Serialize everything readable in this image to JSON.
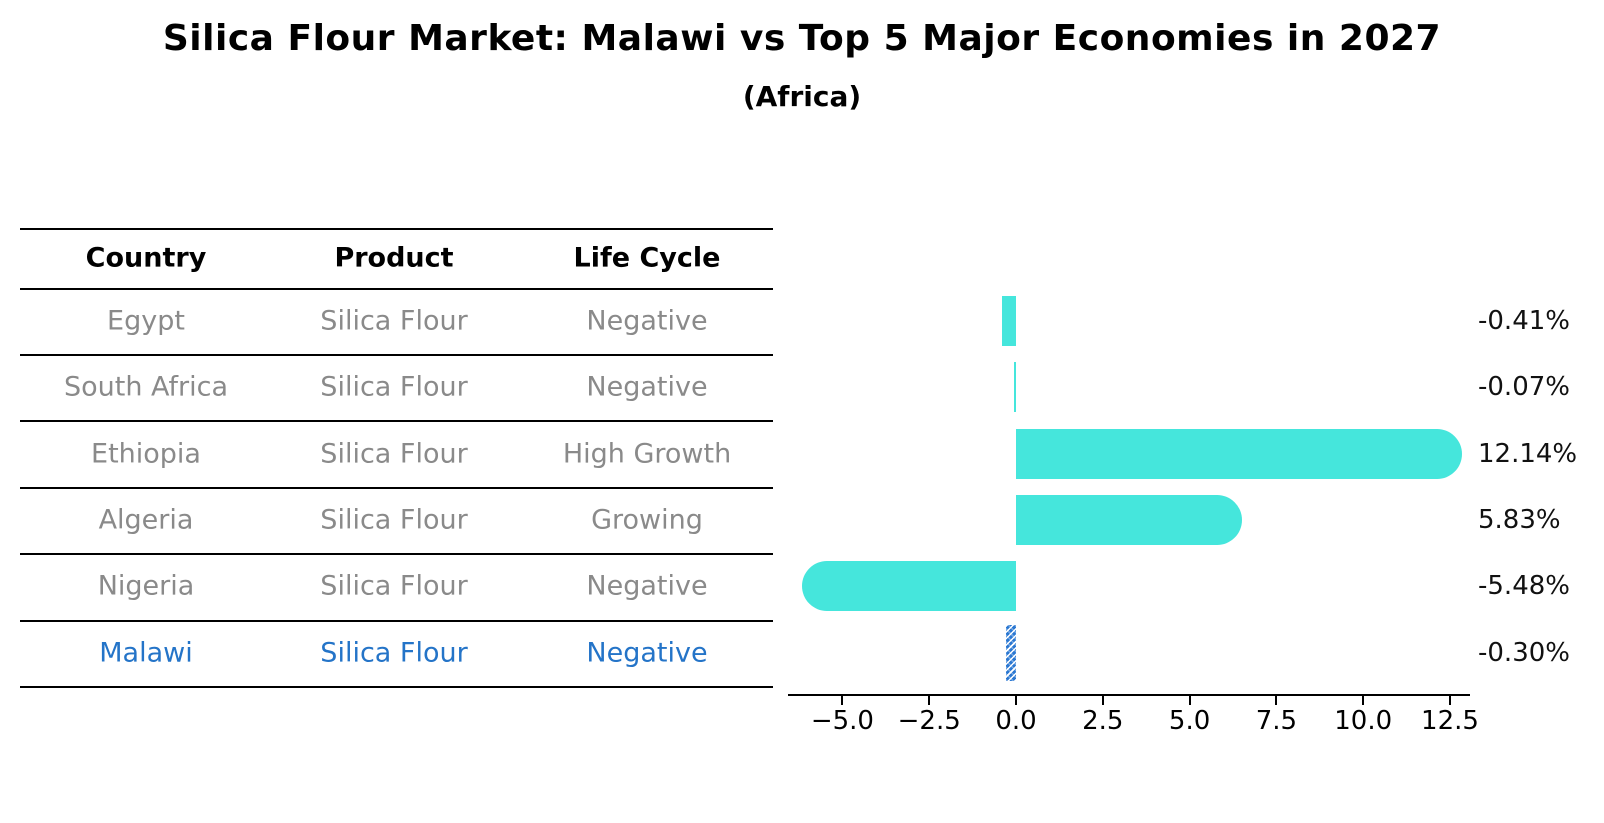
{
  "title": "Silica Flour Market: Malawi vs Top 5 Major Economies in 2027",
  "subtitle": "(Africa)",
  "colors": {
    "bar": "#45E6DC",
    "highlight_bar": "#2b78d2",
    "highlight_text": "#2474c8",
    "row_text": "#8a8a8a",
    "axis_text": "#000000"
  },
  "table": {
    "headers": [
      "Country",
      "Product",
      "Life Cycle"
    ],
    "rows": [
      {
        "country": "Egypt",
        "product": "Silica Flour",
        "life_cycle": "Negative",
        "highlight": false
      },
      {
        "country": "South Africa",
        "product": "Silica Flour",
        "life_cycle": "Negative",
        "highlight": false
      },
      {
        "country": "Ethiopia",
        "product": "Silica Flour",
        "life_cycle": "High Growth",
        "highlight": false
      },
      {
        "country": "Algeria",
        "product": "Silica Flour",
        "life_cycle": "Growing",
        "highlight": false
      },
      {
        "country": "Nigeria",
        "product": "Silica Flour",
        "life_cycle": "Negative",
        "highlight": false
      },
      {
        "country": "Malawi",
        "product": "Silica Flour",
        "life_cycle": "Negative",
        "highlight": true
      }
    ]
  },
  "chart_data": {
    "type": "bar",
    "orientation": "horizontal",
    "title": "Silica Flour Market: Malawi vs Top 5 Major Economies in 2027 (Africa)",
    "categories": [
      "Egypt",
      "South Africa",
      "Ethiopia",
      "Algeria",
      "Nigeria",
      "Malawi"
    ],
    "values": [
      -0.41,
      -0.07,
      12.14,
      5.83,
      -5.48,
      -0.3
    ],
    "value_labels": [
      "-0.41%",
      "-0.07%",
      "12.14%",
      "5.83%",
      "-5.48%",
      "-0.30%"
    ],
    "highlight_category": "Malawi",
    "xlabel": "",
    "ylabel": "",
    "xlim": [
      -6.6,
      13.1
    ],
    "x_ticks": [
      -5.0,
      -2.5,
      0.0,
      2.5,
      5.0,
      7.5,
      10.0,
      12.5
    ],
    "x_tick_labels": [
      "−5.0",
      "−2.5",
      "0.0",
      "2.5",
      "5.0",
      "7.5",
      "10.0",
      "12.5"
    ],
    "grid": false,
    "legend": "none"
  }
}
